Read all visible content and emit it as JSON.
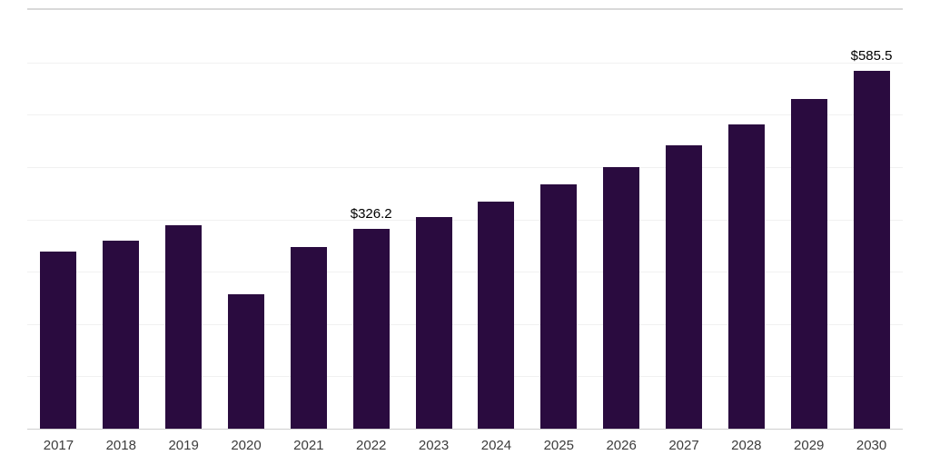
{
  "chart_data": {
    "type": "bar",
    "title": "",
    "categories": [
      "2017",
      "2018",
      "2019",
      "2020",
      "2021",
      "2022",
      "2023",
      "2024",
      "2025",
      "2026",
      "2027",
      "2028",
      "2029",
      "2030"
    ],
    "values": [
      290,
      308,
      333,
      220,
      297,
      326.2,
      346,
      372,
      399,
      428,
      464,
      498,
      539,
      585.5
    ],
    "labeled_points": [
      {
        "category": "2022",
        "label": "$326.2"
      },
      {
        "category": "2030",
        "label": "$585.5"
      }
    ],
    "bar_color": "#2a0b3f",
    "xlabel": "",
    "ylabel": "",
    "ylim": [
      0,
      685
    ],
    "grid": "horizontal",
    "gridline_intervals": 8,
    "legend": "none"
  }
}
